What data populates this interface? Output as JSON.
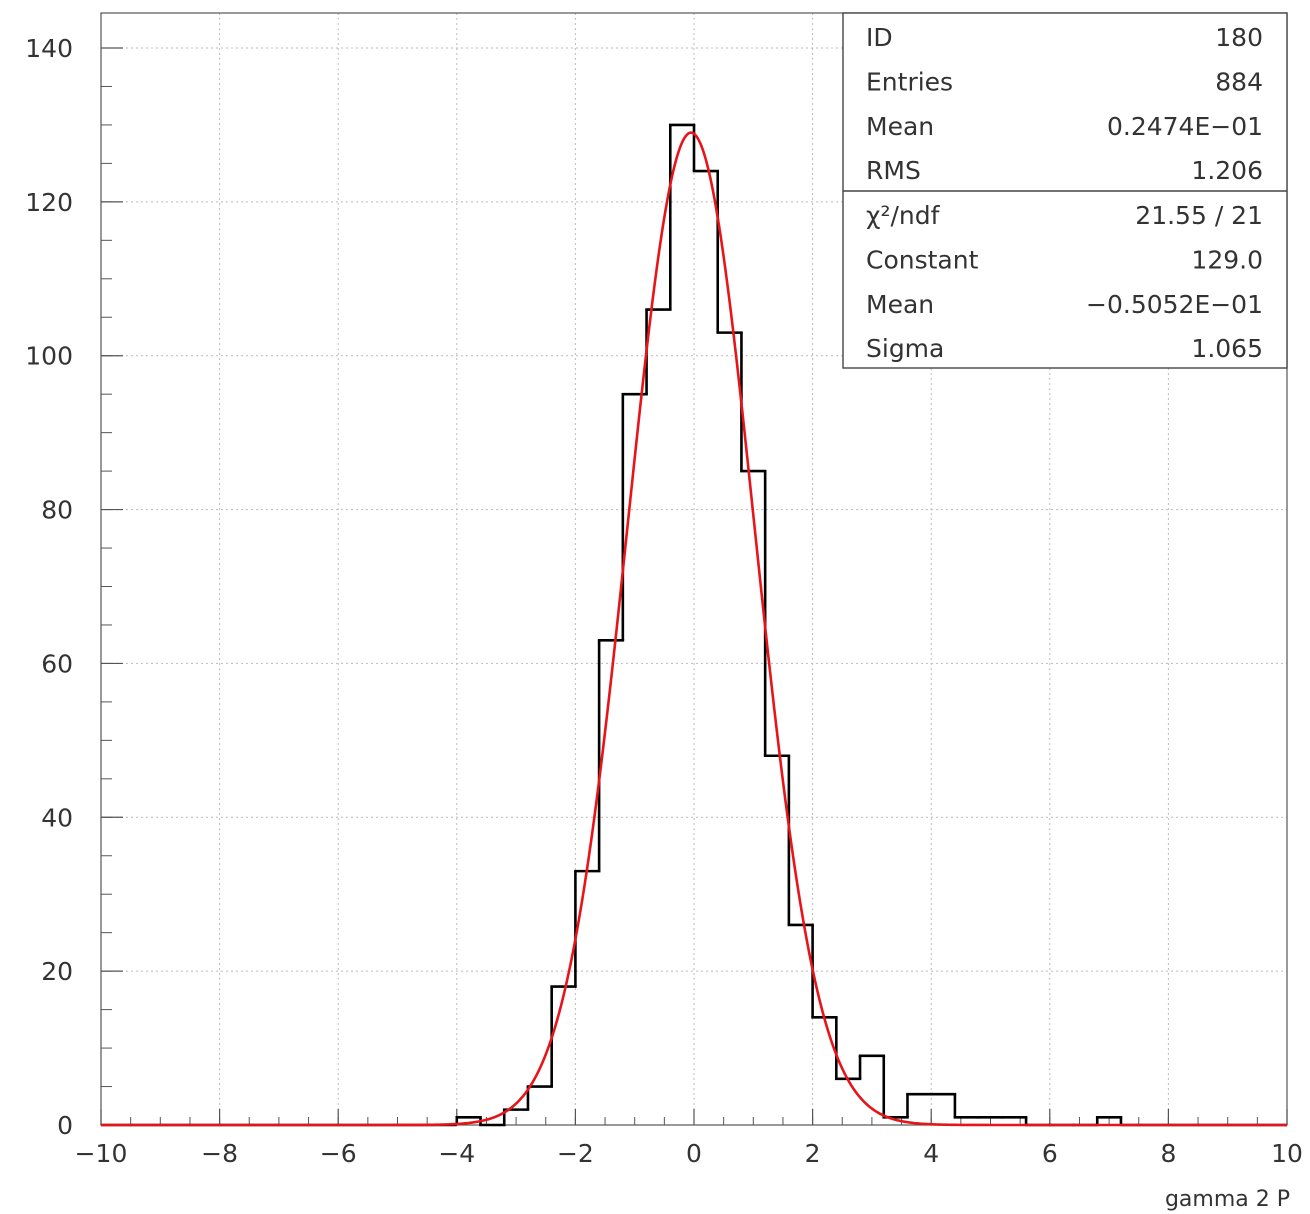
{
  "chart_data": {
    "type": "histogram",
    "xlabel": "gamma 2 P",
    "ylabel": "",
    "xlim": [
      -10,
      10
    ],
    "ylim": [
      0,
      140
    ],
    "grid": true,
    "x_ticks": [
      "−10",
      "−8",
      "−6",
      "−4",
      "−2",
      "0",
      "2",
      "4",
      "6",
      "8",
      "10"
    ],
    "y_ticks": [
      "0",
      "20",
      "40",
      "60",
      "80",
      "100",
      "120",
      "140"
    ],
    "bin_edges": [
      -4.0,
      -3.6,
      -3.2,
      -2.8,
      -2.4,
      -2.0,
      -1.6,
      -1.2,
      -0.8,
      -0.4,
      0.0,
      0.4,
      0.8,
      1.2,
      1.6,
      2.0,
      2.4,
      2.8,
      3.2,
      3.6,
      4.0,
      4.4,
      4.8,
      5.2,
      5.6,
      6.0,
      6.4,
      6.8,
      7.2
    ],
    "counts": [
      1,
      0,
      2,
      5,
      18,
      33,
      63,
      95,
      106,
      130,
      124,
      103,
      85,
      48,
      26,
      14,
      6,
      9,
      1,
      4,
      4,
      1,
      1,
      1,
      0,
      0,
      0,
      1
    ],
    "histogram_color": "#000000",
    "fit": {
      "function": "gaussian",
      "color": "#e8141a",
      "constant": 129.0,
      "mean": -0.05052,
      "sigma": 1.065
    },
    "stats_box": {
      "position": "top-right",
      "rows": [
        {
          "label": "ID",
          "value": "180"
        },
        {
          "label": "Entries",
          "value": "884"
        },
        {
          "label": "Mean",
          "value": "0.2474E−01"
        },
        {
          "label": "RMS",
          "value": "1.206"
        }
      ],
      "fit_rows": [
        {
          "label": "χ²/ndf",
          "value": "21.55   /   21"
        },
        {
          "label": "Constant",
          "value": "129.0"
        },
        {
          "label": "Mean",
          "value": "−0.5052E−01"
        },
        {
          "label": "Sigma",
          "value": "1.065"
        }
      ]
    }
  }
}
